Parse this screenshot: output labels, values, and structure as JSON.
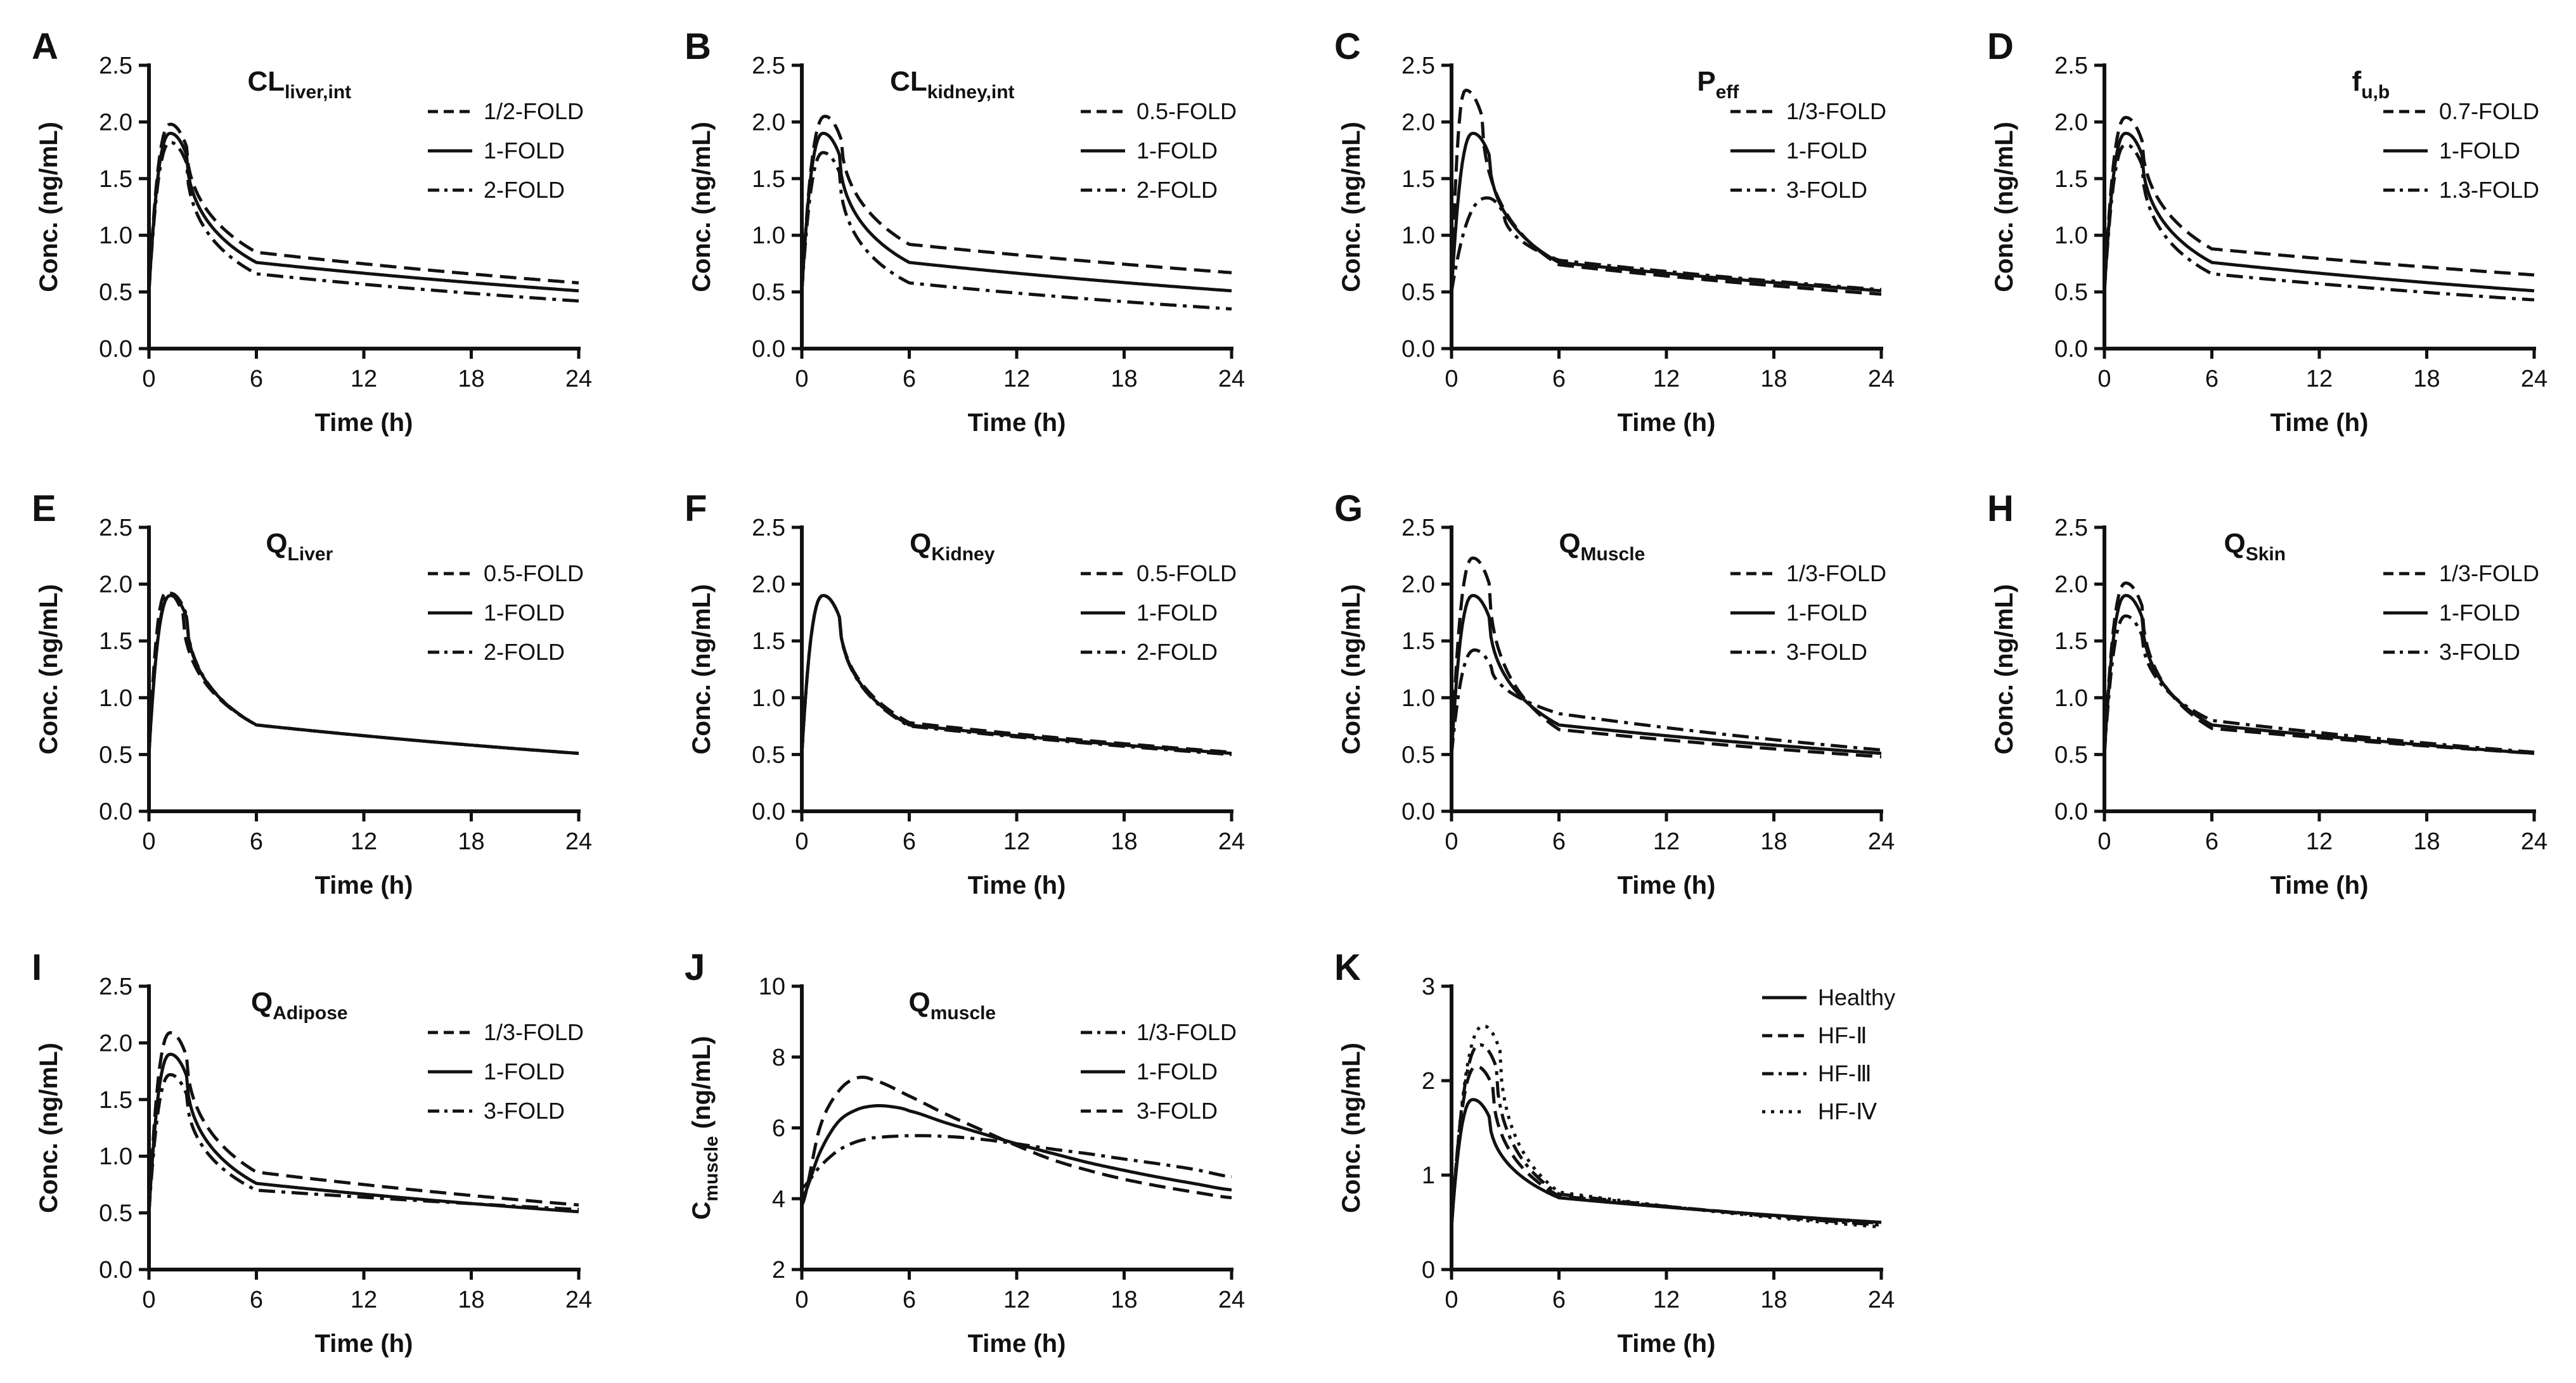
{
  "colors": {
    "ink": "#111111",
    "background": "#ffffff"
  },
  "chart_data": [
    {
      "id": "A",
      "type": "line",
      "title": "CL",
      "title_sub": "liver,int",
      "xlabel": "Time (h)",
      "ylabel": "Conc. (ng/mL)",
      "ylabel_sub": "",
      "xlim": [
        0,
        24
      ],
      "ylim": [
        0,
        2.5
      ],
      "xticks": [
        0,
        6,
        12,
        18,
        24
      ],
      "yticks": [
        0.0,
        0.5,
        1.0,
        1.5,
        2.0,
        2.5
      ],
      "ydecimals": 1,
      "series": [
        {
          "name": "1/2-FOLD",
          "style": "dashed",
          "peak": 1.98,
          "tmax": 1.2,
          "c6": 0.85,
          "c24": 0.58,
          "c0": 0.5
        },
        {
          "name": "1-FOLD",
          "style": "solid",
          "peak": 1.9,
          "tmax": 1.2,
          "c6": 0.76,
          "c24": 0.51,
          "c0": 0.5
        },
        {
          "name": "2-FOLD",
          "style": "dashdot",
          "peak": 1.82,
          "tmax": 1.2,
          "c6": 0.66,
          "c24": 0.42,
          "c0": 0.5
        }
      ]
    },
    {
      "id": "B",
      "type": "line",
      "title": "CL",
      "title_sub": "kidney,int",
      "xlabel": "Time (h)",
      "ylabel": "Conc. (ng/mL)",
      "ylabel_sub": "",
      "xlim": [
        0,
        24
      ],
      "ylim": [
        0,
        2.5
      ],
      "xticks": [
        0,
        6,
        12,
        18,
        24
      ],
      "yticks": [
        0.0,
        0.5,
        1.0,
        1.5,
        2.0,
        2.5
      ],
      "ydecimals": 1,
      "series": [
        {
          "name": "0.5-FOLD",
          "style": "dashed",
          "peak": 2.05,
          "tmax": 1.3,
          "c6": 0.92,
          "c24": 0.67,
          "c0": 0.5
        },
        {
          "name": "1-FOLD",
          "style": "solid",
          "peak": 1.9,
          "tmax": 1.2,
          "c6": 0.76,
          "c24": 0.51,
          "c0": 0.5
        },
        {
          "name": "2-FOLD",
          "style": "dashdot",
          "peak": 1.73,
          "tmax": 1.2,
          "c6": 0.58,
          "c24": 0.35,
          "c0": 0.5
        }
      ]
    },
    {
      "id": "C",
      "type": "line",
      "title": "P",
      "title_sub": "eff",
      "xlabel": "Time (h)",
      "ylabel": "Conc. (ng/mL)",
      "ylabel_sub": "",
      "xlim": [
        0,
        24
      ],
      "ylim": [
        0,
        2.5
      ],
      "xticks": [
        0,
        6,
        12,
        18,
        24
      ],
      "yticks": [
        0.0,
        0.5,
        1.0,
        1.5,
        2.0,
        2.5
      ],
      "ydecimals": 1,
      "series": [
        {
          "name": "1/3-FOLD",
          "style": "dashed",
          "peak": 2.28,
          "tmax": 0.8,
          "c6": 0.74,
          "c24": 0.48,
          "c0": 0.5
        },
        {
          "name": "1-FOLD",
          "style": "solid",
          "peak": 1.9,
          "tmax": 1.2,
          "c6": 0.76,
          "c24": 0.51,
          "c0": 0.5
        },
        {
          "name": "3-FOLD",
          "style": "dashdot",
          "peak": 1.33,
          "tmax": 2.0,
          "c6": 0.78,
          "c24": 0.52,
          "c0": 0.5
        }
      ]
    },
    {
      "id": "D",
      "type": "line",
      "title": "f",
      "title_sub": "u,b",
      "xlabel": "Time (h)",
      "ylabel": "Conc. (ng/mL)",
      "ylabel_sub": "",
      "xlim": [
        0,
        24
      ],
      "ylim": [
        0,
        2.5
      ],
      "xticks": [
        0,
        6,
        12,
        18,
        24
      ],
      "yticks": [
        0.0,
        0.5,
        1.0,
        1.5,
        2.0,
        2.5
      ],
      "ydecimals": 1,
      "series": [
        {
          "name": "0.7-FOLD",
          "style": "dashed",
          "peak": 2.04,
          "tmax": 1.2,
          "c6": 0.88,
          "c24": 0.65,
          "c0": 0.5
        },
        {
          "name": "1-FOLD",
          "style": "solid",
          "peak": 1.9,
          "tmax": 1.2,
          "c6": 0.76,
          "c24": 0.51,
          "c0": 0.5
        },
        {
          "name": "1.3-FOLD",
          "style": "dashdot",
          "peak": 1.8,
          "tmax": 1.2,
          "c6": 0.66,
          "c24": 0.43,
          "c0": 0.5
        }
      ]
    },
    {
      "id": "E",
      "type": "line",
      "title": "Q",
      "title_sub": "Liver",
      "xlabel": "Time (h)",
      "ylabel": "Conc. (ng/mL)",
      "ylabel_sub": "",
      "xlim": [
        0,
        24
      ],
      "ylim": [
        0,
        2.5
      ],
      "xticks": [
        0,
        6,
        12,
        18,
        24
      ],
      "yticks": [
        0.0,
        0.5,
        1.0,
        1.5,
        2.0,
        2.5
      ],
      "ydecimals": 1,
      "series": [
        {
          "name": "0.5-FOLD",
          "style": "dashed",
          "peak": 1.93,
          "tmax": 1.0,
          "c6": 0.76,
          "c24": 0.51,
          "c0": 0.5
        },
        {
          "name": "1-FOLD",
          "style": "solid",
          "peak": 1.9,
          "tmax": 1.2,
          "c6": 0.76,
          "c24": 0.51,
          "c0": 0.5
        },
        {
          "name": "2-FOLD",
          "style": "dashdot",
          "peak": 1.92,
          "tmax": 1.2,
          "c6": 0.76,
          "c24": 0.51,
          "c0": 0.5
        }
      ]
    },
    {
      "id": "F",
      "type": "line",
      "title": "Q",
      "title_sub": "Kidney",
      "xlabel": "Time (h)",
      "ylabel": "Conc. (ng/mL)",
      "ylabel_sub": "",
      "xlim": [
        0,
        24
      ],
      "ylim": [
        0,
        2.5
      ],
      "xticks": [
        0,
        6,
        12,
        18,
        24
      ],
      "yticks": [
        0.0,
        0.5,
        1.0,
        1.5,
        2.0,
        2.5
      ],
      "ydecimals": 1,
      "series": [
        {
          "name": "0.5-FOLD",
          "style": "dashed",
          "peak": 1.9,
          "tmax": 1.2,
          "c6": 0.78,
          "c24": 0.52,
          "c0": 0.5
        },
        {
          "name": "1-FOLD",
          "style": "solid",
          "peak": 1.9,
          "tmax": 1.2,
          "c6": 0.76,
          "c24": 0.51,
          "c0": 0.5
        },
        {
          "name": "2-FOLD",
          "style": "dashdot",
          "peak": 1.9,
          "tmax": 1.2,
          "c6": 0.75,
          "c24": 0.5,
          "c0": 0.5
        }
      ]
    },
    {
      "id": "G",
      "type": "line",
      "title": "Q",
      "title_sub": "Muscle",
      "xlabel": "Time (h)",
      "ylabel": "Conc. (ng/mL)",
      "ylabel_sub": "",
      "xlim": [
        0,
        24
      ],
      "ylim": [
        0,
        2.5
      ],
      "xticks": [
        0,
        6,
        12,
        18,
        24
      ],
      "yticks": [
        0.0,
        0.5,
        1.0,
        1.5,
        2.0,
        2.5
      ],
      "ydecimals": 1,
      "series": [
        {
          "name": "1/3-FOLD",
          "style": "dashed",
          "peak": 2.23,
          "tmax": 1.2,
          "c6": 0.72,
          "c24": 0.48,
          "c0": 0.5
        },
        {
          "name": "1-FOLD",
          "style": "solid",
          "peak": 1.9,
          "tmax": 1.2,
          "c6": 0.76,
          "c24": 0.51,
          "c0": 0.5
        },
        {
          "name": "3-FOLD",
          "style": "dashdot",
          "peak": 1.42,
          "tmax": 1.3,
          "c6": 0.86,
          "c24": 0.54,
          "c0": 0.5
        }
      ]
    },
    {
      "id": "H",
      "type": "line",
      "title": "Q",
      "title_sub": "Skin",
      "xlabel": "Time (h)",
      "ylabel": "Conc. (ng/mL)",
      "ylabel_sub": "",
      "xlim": [
        0,
        24
      ],
      "ylim": [
        0,
        2.5
      ],
      "xticks": [
        0,
        6,
        12,
        18,
        24
      ],
      "yticks": [
        0.0,
        0.5,
        1.0,
        1.5,
        2.0,
        2.5
      ],
      "ydecimals": 1,
      "series": [
        {
          "name": "1/3-FOLD",
          "style": "dashed",
          "peak": 2.01,
          "tmax": 1.2,
          "c6": 0.73,
          "c24": 0.51,
          "c0": 0.5
        },
        {
          "name": "1-FOLD",
          "style": "solid",
          "peak": 1.9,
          "tmax": 1.2,
          "c6": 0.76,
          "c24": 0.51,
          "c0": 0.5
        },
        {
          "name": "3-FOLD",
          "style": "dashdot",
          "peak": 1.72,
          "tmax": 1.2,
          "c6": 0.8,
          "c24": 0.52,
          "c0": 0.5
        }
      ]
    },
    {
      "id": "I",
      "type": "line",
      "title": "Q",
      "title_sub": "Adipose",
      "xlabel": "Time (h)",
      "ylabel": "Conc. (ng/mL)",
      "ylabel_sub": "",
      "xlim": [
        0,
        24
      ],
      "ylim": [
        0,
        2.5
      ],
      "xticks": [
        0,
        6,
        12,
        18,
        24
      ],
      "yticks": [
        0.0,
        0.5,
        1.0,
        1.5,
        2.0,
        2.5
      ],
      "ydecimals": 1,
      "series": [
        {
          "name": "1/3-FOLD",
          "style": "dashed",
          "peak": 2.09,
          "tmax": 1.2,
          "c6": 0.86,
          "c24": 0.57,
          "c0": 0.5
        },
        {
          "name": "1-FOLD",
          "style": "solid",
          "peak": 1.9,
          "tmax": 1.2,
          "c6": 0.76,
          "c24": 0.51,
          "c0": 0.5
        },
        {
          "name": "3-FOLD",
          "style": "dashdot",
          "peak": 1.72,
          "tmax": 1.2,
          "c6": 0.7,
          "c24": 0.53,
          "c0": 0.5
        }
      ]
    },
    {
      "id": "J",
      "type": "line",
      "title": "Q",
      "title_sub": "muscle",
      "xlabel": "Time (h)",
      "ylabel": "C",
      "ylabel_sub": "muscle",
      "ylabel_tail": " (ng/mL)",
      "xlim": [
        0,
        24
      ],
      "ylim": [
        2,
        10
      ],
      "xticks": [
        0,
        6,
        12,
        18,
        24
      ],
      "yticks": [
        2,
        4,
        6,
        8,
        10
      ],
      "ydecimals": 0,
      "series": [
        {
          "name": "1/3-FOLD",
          "style": "dashdot",
          "c0": 4.3,
          "points": [
            [
              0,
              4.3
            ],
            [
              1,
              4.9
            ],
            [
              2,
              5.35
            ],
            [
              3,
              5.6
            ],
            [
              4,
              5.72
            ],
            [
              6,
              5.78
            ],
            [
              8,
              5.76
            ],
            [
              10,
              5.68
            ],
            [
              12,
              5.55
            ],
            [
              14,
              5.4
            ],
            [
              16,
              5.27
            ],
            [
              18,
              5.12
            ],
            [
              20,
              4.98
            ],
            [
              22,
              4.82
            ],
            [
              24,
              4.62
            ]
          ]
        },
        {
          "name": "1-FOLD",
          "style": "solid",
          "c0": 4.0,
          "points": [
            [
              0,
              4.0
            ],
            [
              1,
              5.3
            ],
            [
              2,
              6.15
            ],
            [
              3,
              6.5
            ],
            [
              4,
              6.62
            ],
            [
              5,
              6.6
            ],
            [
              6,
              6.48
            ],
            [
              8,
              6.15
            ],
            [
              10,
              5.85
            ],
            [
              12,
              5.55
            ],
            [
              14,
              5.28
            ],
            [
              16,
              5.02
            ],
            [
              18,
              4.8
            ],
            [
              20,
              4.6
            ],
            [
              22,
              4.42
            ],
            [
              24,
              4.25
            ]
          ]
        },
        {
          "name": "3-FOLD",
          "style": "dashed",
          "c0": 3.8,
          "points": [
            [
              0,
              3.8
            ],
            [
              1,
              6.0
            ],
            [
              2,
              7.0
            ],
            [
              3,
              7.4
            ],
            [
              4,
              7.35
            ],
            [
              6,
              6.9
            ],
            [
              8,
              6.4
            ],
            [
              10,
              5.95
            ],
            [
              12,
              5.5
            ],
            [
              14,
              5.1
            ],
            [
              16,
              4.8
            ],
            [
              18,
              4.55
            ],
            [
              20,
              4.35
            ],
            [
              22,
              4.18
            ],
            [
              24,
              4.03
            ]
          ]
        }
      ]
    },
    {
      "id": "K",
      "type": "line",
      "title": "",
      "title_sub": "",
      "xlabel": "Time (h)",
      "ylabel": "Conc. (ng/mL)",
      "ylabel_sub": "",
      "xlim": [
        0,
        24
      ],
      "ylim": [
        0,
        3
      ],
      "xticks": [
        0,
        6,
        12,
        18,
        24
      ],
      "yticks": [
        0,
        1,
        2,
        3
      ],
      "ydecimals": 0,
      "series": [
        {
          "name": "Healthy",
          "style": "solid",
          "peak": 1.8,
          "tmax": 1.2,
          "c6": 0.76,
          "c24": 0.5,
          "c0": 0.45
        },
        {
          "name": "HF-Ⅱ",
          "style": "dashed",
          "peak": 2.15,
          "tmax": 1.4,
          "c6": 0.78,
          "c24": 0.49,
          "c0": 0.45
        },
        {
          "name": "HF-Ⅲ",
          "style": "dashdot",
          "peak": 2.38,
          "tmax": 1.6,
          "c6": 0.8,
          "c24": 0.47,
          "c0": 0.45
        },
        {
          "name": "HF-Ⅳ",
          "style": "dotted",
          "peak": 2.58,
          "tmax": 1.8,
          "c6": 0.82,
          "c24": 0.45,
          "c0": 0.45
        }
      ]
    }
  ]
}
